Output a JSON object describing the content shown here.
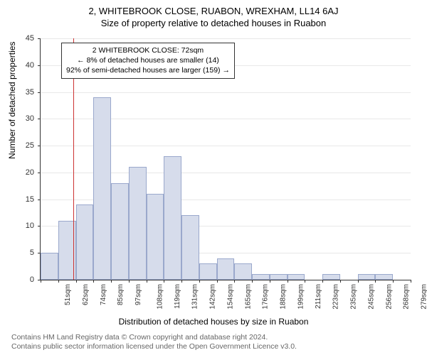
{
  "title_main": "2, WHITEBROOK CLOSE, RUABON, WREXHAM, LL14 6AJ",
  "title_sub": "Size of property relative to detached houses in Ruabon",
  "ylabel": "Number of detached properties",
  "xlabel": "Distribution of detached houses by size in Ruabon",
  "chart": {
    "type": "histogram",
    "ymax": 45,
    "ytick_step": 5,
    "bar_fill": "#d6dceb",
    "bar_stroke": "#9aa8cc",
    "grid_color": "#e8e8e8",
    "background": "#ffffff",
    "bins": [
      {
        "label": "51sqm",
        "value": 5
      },
      {
        "label": "62sqm",
        "value": 11
      },
      {
        "label": "74sqm",
        "value": 14
      },
      {
        "label": "85sqm",
        "value": 34
      },
      {
        "label": "97sqm",
        "value": 18
      },
      {
        "label": "108sqm",
        "value": 21
      },
      {
        "label": "119sqm",
        "value": 16
      },
      {
        "label": "131sqm",
        "value": 23
      },
      {
        "label": "142sqm",
        "value": 12
      },
      {
        "label": "154sqm",
        "value": 3
      },
      {
        "label": "165sqm",
        "value": 4
      },
      {
        "label": "176sqm",
        "value": 3
      },
      {
        "label": "188sqm",
        "value": 1
      },
      {
        "label": "199sqm",
        "value": 1
      },
      {
        "label": "211sqm",
        "value": 1
      },
      {
        "label": "223sqm",
        "value": 0
      },
      {
        "label": "235sqm",
        "value": 1
      },
      {
        "label": "245sqm",
        "value": 0
      },
      {
        "label": "256sqm",
        "value": 1
      },
      {
        "label": "268sqm",
        "value": 1
      },
      {
        "label": "279sqm",
        "value": 0
      }
    ],
    "marker_line": {
      "index": 1.85,
      "color": "#cc3333"
    },
    "annotation": {
      "line1": "2 WHITEBROOK CLOSE: 72sqm",
      "line2": "← 8% of detached houses are smaller (14)",
      "line3": "92% of semi-detached houses are larger (159) →"
    }
  },
  "footer_line1": "Contains HM Land Registry data © Crown copyright and database right 2024.",
  "footer_line2": "Contains public sector information licensed under the Open Government Licence v3.0."
}
